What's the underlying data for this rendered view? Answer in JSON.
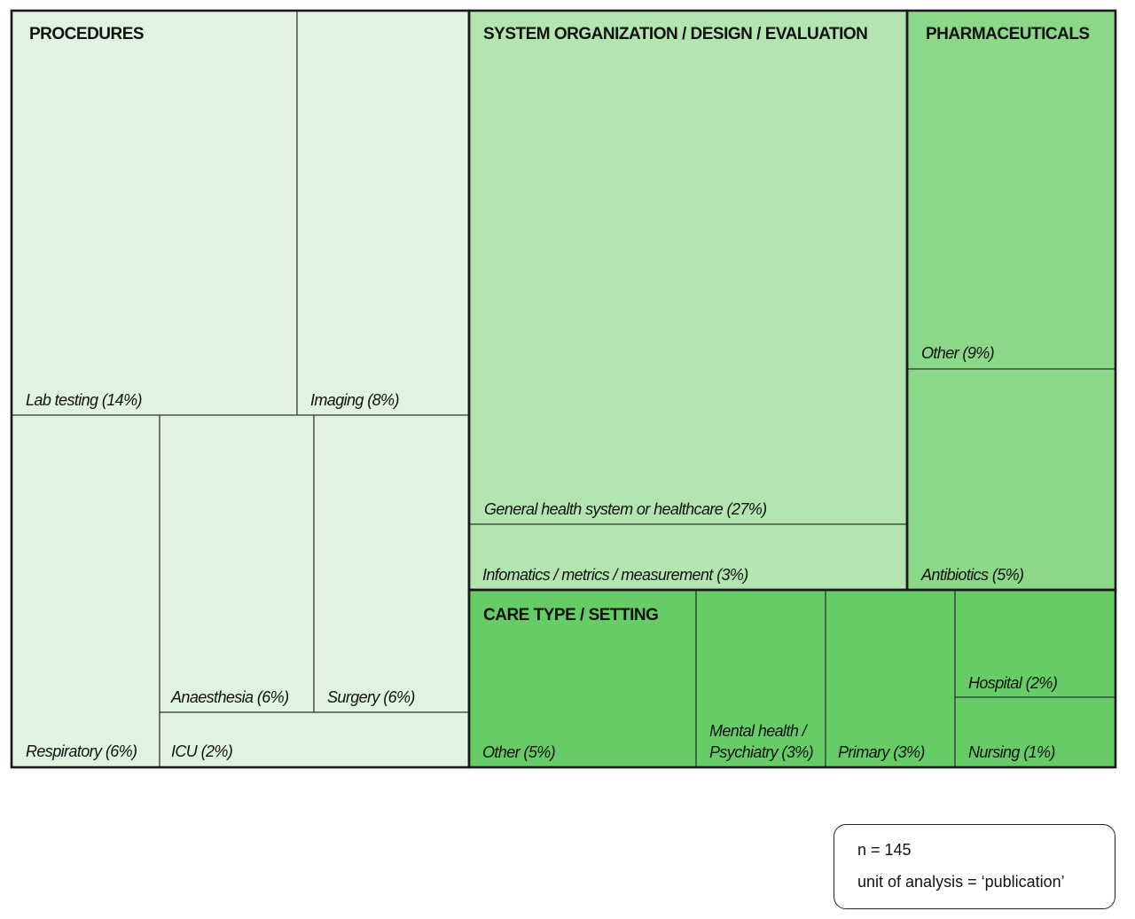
{
  "chart_data": {
    "type": "treemap",
    "groups": [
      {
        "name": "PROCEDURES",
        "color": "#dff3df",
        "leaves": [
          {
            "label": "Lab testing (14%)",
            "value": 14
          },
          {
            "label": "Imaging (8%)",
            "value": 8
          },
          {
            "label": "Respiratory (6%)",
            "value": 6
          },
          {
            "label": "Anaesthesia (6%)",
            "value": 6
          },
          {
            "label": "Surgery (6%)",
            "value": 6
          },
          {
            "label": "ICU (2%)",
            "value": 2
          }
        ]
      },
      {
        "name": "SYSTEM ORGANIZATION / DESIGN / EVALUATION",
        "color": "#b3e5b1",
        "leaves": [
          {
            "label": "General health system or healthcare (27%)",
            "value": 27
          },
          {
            "label": "Infomatics / metrics / measurement (3%)",
            "value": 3
          }
        ]
      },
      {
        "name": "PHARMACEUTICALS",
        "color": "#8cd889",
        "leaves": [
          {
            "label": "Other (9%)",
            "value": 9
          },
          {
            "label": "Antibiotics (5%)",
            "value": 5
          }
        ]
      },
      {
        "name": "CARE TYPE / SETTING",
        "color": "#66cc66",
        "leaves": [
          {
            "label": "Other (5%)",
            "value": 5
          },
          {
            "label": "Mental health / Psychiatry (3%)",
            "value": 3
          },
          {
            "label": "Primary (3%)",
            "value": 3
          },
          {
            "label": "Hospital (2%)",
            "value": 2
          },
          {
            "label": "Nursing (1%)",
            "value": 1
          }
        ]
      }
    ]
  },
  "note": {
    "n_text": "n = 145",
    "unit_text": "unit of analysis = ‘publication’"
  }
}
